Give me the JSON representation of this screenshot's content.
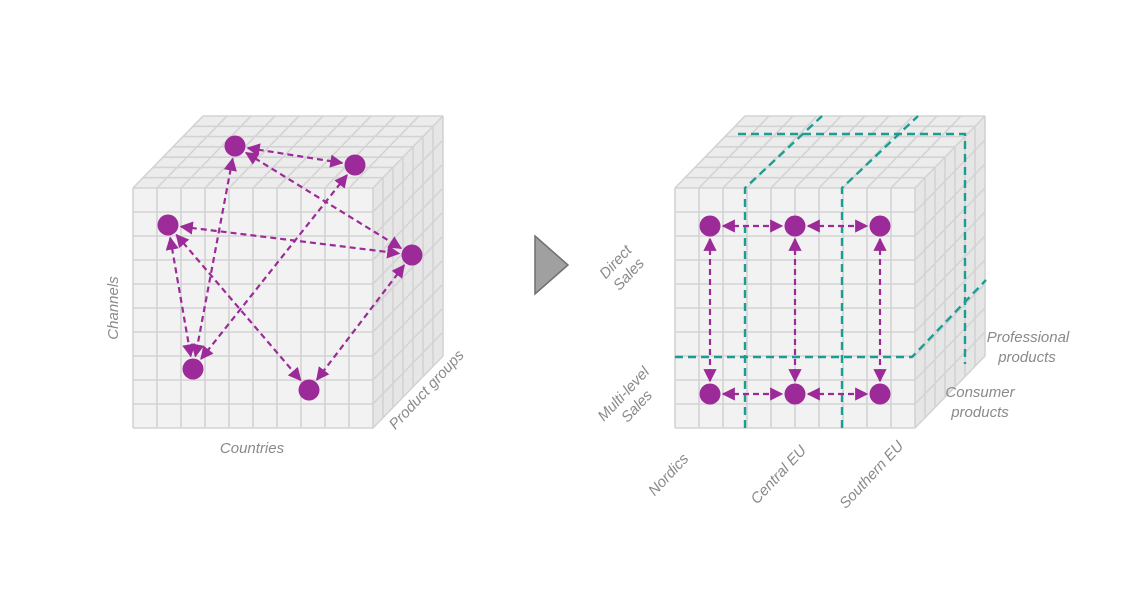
{
  "left_cube": {
    "axis_x": "Countries",
    "axis_y": "Channels",
    "axis_z": "Product groups"
  },
  "right_cube": {
    "rows": [
      [
        "Direct",
        "Sales"
      ],
      [
        "Multi-level",
        "Sales"
      ]
    ],
    "columns": [
      "Nordics",
      "Central EU",
      "Southern EU"
    ],
    "depth": [
      [
        "Professional",
        "products"
      ],
      [
        "Consumer",
        "products"
      ]
    ]
  },
  "colors": {
    "node": "#9c2a98",
    "split_line": "#1a9e94",
    "arrow_shape": "#a0a0a0"
  },
  "icons": [
    "transform-arrow-icon"
  ]
}
